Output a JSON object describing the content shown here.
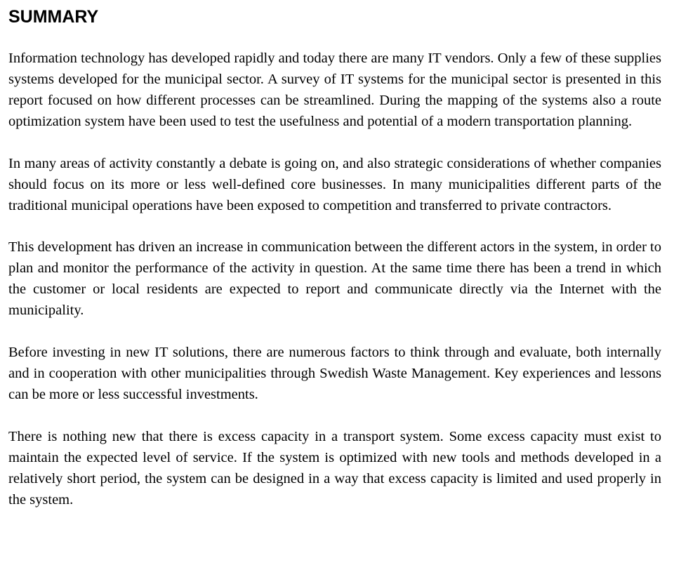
{
  "document": {
    "heading": "SUMMARY",
    "paragraphs": [
      "Information technology has developed rapidly and today there are many IT vendors. Only a few of these supplies systems developed for the municipal sector. A survey of IT systems for the municipal sector is presented in this report focused on how different processes can be streamlined. During the mapping of the systems also a route optimization system have been used to test the usefulness and potential of a modern transportation planning.",
      "In many areas of activity constantly a debate is going on, and also strategic considerations of whether companies should focus on its more or less well-defined core businesses. In many municipalities different parts of the traditional municipal operations have been exposed to competition and transferred to private contractors.",
      "This development has driven an increase in communication between the different actors in the system, in order to plan and monitor the performance of the activity in question. At the same time there has been a trend in which the customer or local residents are expected to report and communicate directly via the Internet with the municipality.",
      "Before investing in new IT solutions, there are numerous factors to think through and evaluate, both internally and in cooperation with other municipalities through Swedish Waste Management. Key experiences and lessons can be more or less successful investments.",
      "There is nothing new that there is excess capacity in a transport system. Some excess capacity must exist to maintain the expected level of service. If the system is optimized with new tools and methods developed in a relatively short period, the system can be designed in a way that excess capacity is limited and used properly in the system."
    ],
    "text_color": "#000000",
    "background_color": "#ffffff",
    "heading_font": "Arial",
    "body_font": "Georgia",
    "heading_fontsize_pt": 19,
    "body_fontsize_pt": 15,
    "line_height": 1.46
  }
}
